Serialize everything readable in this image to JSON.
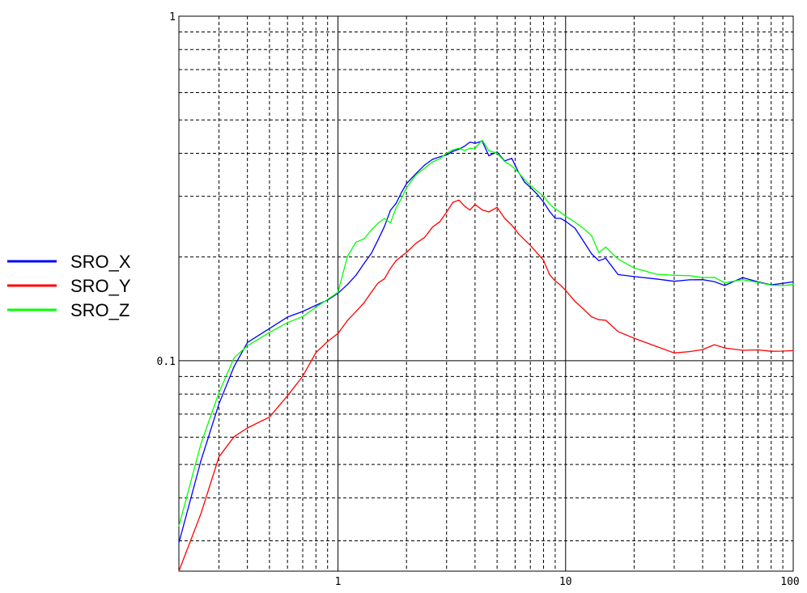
{
  "chart_data": {
    "type": "line",
    "title": "",
    "xlabel": "",
    "ylabel": "",
    "xscale": "log",
    "yscale": "log",
    "xlim": [
      0.2,
      100
    ],
    "ylim": [
      0.0245,
      1
    ],
    "grid": true,
    "legend_position": "left",
    "x_tick_labels": [
      {
        "value": 1,
        "label": "1"
      },
      {
        "value": 10,
        "label": "10"
      },
      {
        "value": 100,
        "label": "100"
      }
    ],
    "y_tick_labels": [
      {
        "value": 1,
        "label": "1"
      },
      {
        "value": 0.1,
        "label": "0.1"
      }
    ],
    "x": [
      0.2,
      0.25,
      0.3,
      0.35,
      0.4,
      0.5,
      0.6,
      0.7,
      0.8,
      0.9,
      1.0,
      1.1,
      1.2,
      1.3,
      1.4,
      1.5,
      1.6,
      1.7,
      1.8,
      1.9,
      2.0,
      2.2,
      2.4,
      2.6,
      2.8,
      3.0,
      3.2,
      3.4,
      3.6,
      3.8,
      4.0,
      4.3,
      4.6,
      5.0,
      5.4,
      5.8,
      6.2,
      6.6,
      7.0,
      7.5,
      8.0,
      8.5,
      9.0,
      9.5,
      10,
      11,
      12,
      13,
      14,
      15,
      17,
      20,
      25,
      30,
      35,
      40,
      45,
      50,
      60,
      70,
      80,
      90,
      100
    ],
    "series": [
      {
        "name": "SRO_X",
        "color": "#0000ff",
        "values": [
          0.0296,
          0.0513,
          0.0749,
          0.0963,
          0.113,
          0.124,
          0.1339,
          0.139,
          0.1448,
          0.15,
          0.157,
          0.1663,
          0.1771,
          0.1913,
          0.2048,
          0.2244,
          0.2454,
          0.2733,
          0.2864,
          0.3079,
          0.3266,
          0.3491,
          0.3695,
          0.384,
          0.3905,
          0.3957,
          0.4053,
          0.4109,
          0.4197,
          0.4312,
          0.4277,
          0.434,
          0.3934,
          0.4037,
          0.3802,
          0.3866,
          0.3536,
          0.3299,
          0.3186,
          0.3043,
          0.2887,
          0.2716,
          0.2589,
          0.259,
          0.254,
          0.2424,
          0.2219,
          0.2044,
          0.1951,
          0.1983,
          0.1778,
          0.1754,
          0.1727,
          0.17,
          0.1717,
          0.1719,
          0.1697,
          0.1653,
          0.1743,
          0.1694,
          0.166,
          0.1677,
          0.1694
        ]
      },
      {
        "name": "SRO_Y",
        "color": "#ff0000",
        "values": [
          0.0245,
          0.036,
          0.0526,
          0.0602,
          0.0638,
          0.0686,
          0.0791,
          0.0901,
          0.1056,
          0.1137,
          0.12,
          0.1308,
          0.1389,
          0.1472,
          0.1579,
          0.1681,
          0.1729,
          0.1853,
          0.1953,
          0.2011,
          0.2062,
          0.2192,
          0.2278,
          0.2443,
          0.253,
          0.27,
          0.2882,
          0.2926,
          0.2809,
          0.2737,
          0.2842,
          0.2741,
          0.2702,
          0.2787,
          0.259,
          0.2473,
          0.2339,
          0.2245,
          0.2162,
          0.2053,
          0.1956,
          0.1778,
          0.1705,
          0.1657,
          0.16,
          0.1486,
          0.1412,
          0.1341,
          0.1315,
          0.131,
          0.1215,
          0.1162,
          0.1101,
          0.1053,
          0.1063,
          0.1077,
          0.1113,
          0.1089,
          0.1072,
          0.1075,
          0.1065,
          0.1066,
          0.107
        ]
      },
      {
        "name": "SRO_Z",
        "color": "#00ff00",
        "values": [
          0.0331,
          0.0574,
          0.0808,
          0.102,
          0.1105,
          0.1208,
          0.129,
          0.1343,
          0.1429,
          0.1506,
          0.158,
          0.2007,
          0.2209,
          0.2256,
          0.2393,
          0.2507,
          0.2587,
          0.2512,
          0.2779,
          0.296,
          0.3175,
          0.3466,
          0.3618,
          0.3775,
          0.3853,
          0.4,
          0.4095,
          0.4138,
          0.4075,
          0.4136,
          0.414,
          0.4366,
          0.4071,
          0.4004,
          0.3787,
          0.3671,
          0.3522,
          0.3355,
          0.3229,
          0.3108,
          0.3005,
          0.2851,
          0.276,
          0.2696,
          0.2626,
          0.2524,
          0.2419,
          0.2307,
          0.2058,
          0.2137,
          0.1972,
          0.1859,
          0.1783,
          0.177,
          0.1766,
          0.1743,
          0.1746,
          0.1684,
          0.1719,
          0.1687,
          0.1657,
          0.1652,
          0.1664
        ]
      }
    ]
  }
}
